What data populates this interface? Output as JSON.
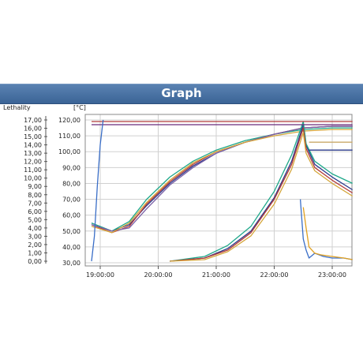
{
  "header": {
    "title": "Graph"
  },
  "chart_data": {
    "type": "line",
    "left_axis": {
      "title": "Lethality",
      "ticks": [
        "17,00",
        "16,00",
        "15,00",
        "14,00",
        "13,00",
        "12,00",
        "11,00",
        "10,00",
        "9,00",
        "8,00",
        "7,00",
        "6,00",
        "5,00",
        "4,00",
        "3,00",
        "2,00",
        "1,00",
        "0,00"
      ],
      "range": [
        0,
        17
      ]
    },
    "right_axis": {
      "title": "[°C]",
      "ticks": [
        "120,00",
        "110,00",
        "100,00",
        "90,00",
        "80,00",
        "70,00",
        "60,00",
        "50,00",
        "40,00",
        "30,00"
      ],
      "range": [
        30,
        120
      ]
    },
    "x_axis": {
      "ticks": [
        "19:00:00",
        "20:00:00",
        "21:00:00",
        "22:00:00",
        "23:00:00"
      ]
    },
    "grid": true,
    "series": [
      {
        "color": "#2a3a8c",
        "x": [
          18.85,
          19.2,
          19.5,
          19.8,
          20.2,
          20.6,
          21.0,
          21.5,
          22.0,
          22.5,
          23.0,
          23.35
        ],
        "y": [
          55,
          50,
          54,
          66,
          80,
          91,
          99,
          106,
          111,
          115,
          116,
          116
        ]
      },
      {
        "color": "#1fa88a",
        "x": [
          18.85,
          19.2,
          19.5,
          19.8,
          20.2,
          20.6,
          21.0,
          21.5,
          22.0,
          22.5,
          23.0,
          23.35
        ],
        "y": [
          55,
          50,
          56,
          70,
          84,
          94,
          101,
          107,
          111,
          114,
          115,
          115
        ]
      },
      {
        "color": "#b23a3a",
        "x": [
          18.85,
          19.2,
          19.5,
          19.8,
          20.2,
          20.6,
          21.0,
          21.5,
          22.0,
          22.5,
          23.0,
          23.35
        ],
        "y": [
          54,
          49,
          53,
          67,
          81,
          92,
          100,
          106,
          111,
          115,
          116,
          116
        ]
      },
      {
        "color": "#7a5fa6",
        "x": [
          18.85,
          19.2,
          19.5,
          19.8,
          20.2,
          20.6,
          21.0,
          21.5,
          22.0,
          22.5,
          23.0,
          23.35
        ],
        "y": [
          54,
          50,
          52,
          64,
          79,
          90,
          99,
          106,
          111,
          115,
          116,
          116
        ]
      },
      {
        "color": "#d5a63a",
        "x": [
          18.85,
          19.2,
          19.5,
          19.8,
          20.2,
          20.6,
          21.0,
          21.5,
          22.0,
          22.5,
          23.0,
          23.35
        ],
        "y": [
          53,
          49,
          55,
          68,
          82,
          93,
          100,
          106,
          110,
          113,
          114,
          114
        ]
      },
      {
        "color": "#2a3a8c",
        "x": [
          20.2,
          20.8,
          21.2,
          21.6,
          22.0,
          22.3,
          22.5,
          22.55,
          22.7,
          23.0,
          23.35
        ],
        "y": [
          31,
          33,
          39,
          50,
          71,
          94,
          117,
          104,
          92,
          84,
          76
        ]
      },
      {
        "color": "#1fa88a",
        "x": [
          20.2,
          20.8,
          21.2,
          21.6,
          22.0,
          22.3,
          22.5,
          22.55,
          22.7,
          23.0,
          23.35
        ],
        "y": [
          31,
          34,
          41,
          53,
          75,
          98,
          119,
          105,
          94,
          86,
          80
        ]
      },
      {
        "color": "#b23a3a",
        "x": [
          20.2,
          20.8,
          21.2,
          21.6,
          22.0,
          22.3,
          22.5,
          22.55,
          22.7,
          23.0,
          23.35
        ],
        "y": [
          31,
          33,
          38,
          49,
          70,
          92,
          115,
          102,
          90,
          82,
          74
        ]
      },
      {
        "color": "#d5a63a",
        "x": [
          20.2,
          20.8,
          21.2,
          21.6,
          22.0,
          22.3,
          22.5,
          22.55,
          22.7,
          23.0,
          23.35
        ],
        "y": [
          31,
          32,
          37,
          47,
          67,
          89,
          112,
          99,
          88,
          80,
          72
        ]
      },
      {
        "color": "#3a6ec7",
        "x": [
          22.45,
          22.5,
          22.55,
          22.6,
          22.7,
          22.85,
          23.0,
          23.2,
          23.35
        ],
        "y": [
          70,
          45,
          38,
          33,
          36,
          34,
          33,
          33,
          32
        ]
      },
      {
        "color": "#e0a020",
        "x": [
          22.5,
          22.55,
          22.6,
          22.7,
          22.8,
          23.0,
          23.2,
          23.35
        ],
        "y": [
          65,
          52,
          40,
          36,
          35,
          34,
          33,
          32
        ]
      },
      {
        "color": "#b23a3a",
        "x": [
          18.85,
          23.35
        ],
        "y": [
          119,
          119
        ]
      },
      {
        "color": "#6a2a7a",
        "x": [
          18.85,
          23.35
        ],
        "y": [
          117,
          117
        ]
      },
      {
        "color": "#2a3a8c",
        "x": [
          22.6,
          23.35
        ],
        "y": [
          101,
          101
        ]
      },
      {
        "color": "#c9a96a",
        "x": [
          22.6,
          23.35
        ],
        "y": [
          106,
          106
        ]
      }
    ],
    "lethality_series": [
      {
        "color": "#3a6ec7",
        "x": [
          18.85,
          18.9,
          18.95,
          19.0,
          19.05
        ],
        "y": [
          0,
          3,
          9,
          14,
          17
        ]
      }
    ]
  }
}
